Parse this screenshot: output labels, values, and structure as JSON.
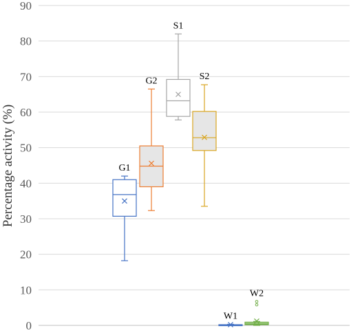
{
  "chart_data": {
    "type": "box",
    "title": "",
    "ylabel": "Percentage activity (%)",
    "xlabel": "",
    "ylim": [
      0,
      90
    ],
    "yticks": [
      0,
      10,
      20,
      30,
      40,
      50,
      60,
      70,
      80,
      90
    ],
    "grid": true,
    "boxes": [
      {
        "label": "G1",
        "color": "#4472C4",
        "fill": "#ffffff",
        "min": 18.2,
        "q1": 30.7,
        "median": 36.8,
        "q3": 41.0,
        "max": 42.0,
        "mean": 35.0,
        "outliers": []
      },
      {
        "label": "G2",
        "color": "#ED7D31",
        "fill": "#e6e6e6",
        "min": 32.3,
        "q1": 39.0,
        "median": 44.8,
        "q3": 50.5,
        "max": 66.5,
        "mean": 45.6,
        "outliers": []
      },
      {
        "label": "S1",
        "color": "#A5A5A5",
        "fill": "#ffffff",
        "min": 57.8,
        "q1": 58.8,
        "median": 63.2,
        "q3": 69.2,
        "max": 82.0,
        "mean": 65.0,
        "outliers": []
      },
      {
        "label": "S2",
        "color": "#D9A520",
        "fill": "#e6e6e6",
        "min": 33.5,
        "q1": 49.2,
        "median": 52.8,
        "q3": 60.2,
        "max": 67.7,
        "mean": 52.9,
        "outliers": []
      },
      {
        "label": "W1",
        "color": "#4472C4",
        "fill": "#ffffff",
        "min": 0.0,
        "q1": 0.0,
        "median": 0.1,
        "q3": 0.2,
        "max": 0.3,
        "mean": 0.2,
        "outliers": []
      },
      {
        "label": "W2",
        "color": "#70AD47",
        "fill": "#A9D18E",
        "min": 0.0,
        "q1": 0.2,
        "median": 0.4,
        "q3": 0.9,
        "max": 1.1,
        "mean": 1.2,
        "outliers": [
          5.8,
          6.7
        ]
      }
    ]
  }
}
